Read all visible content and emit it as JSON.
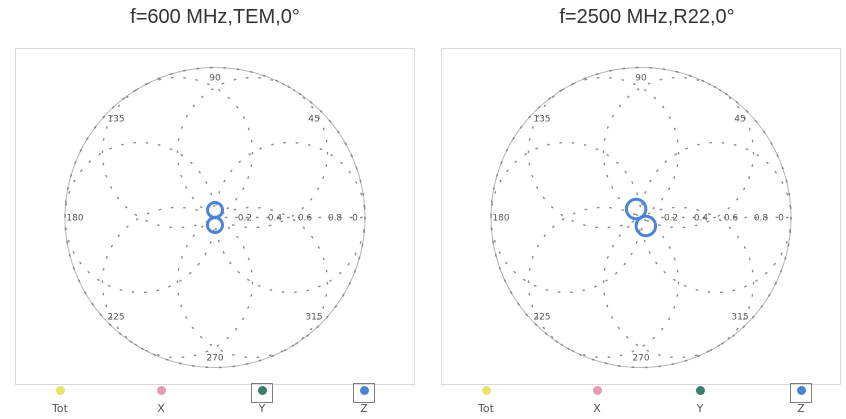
{
  "chart_data": [
    {
      "type": "polar",
      "title": "f=600 MHz,TEM,0°",
      "angle_ticks": [
        "90",
        "135",
        "180",
        "225",
        "270",
        "315",
        "0",
        "45"
      ],
      "angle_tick_degrees": [
        90,
        135,
        180,
        225,
        270,
        315,
        0,
        45
      ],
      "r_ticks": [
        "0.2",
        "0.4",
        "0.6",
        "0.8"
      ],
      "r_tick_values": [
        0.2,
        0.4,
        0.6,
        0.8
      ],
      "rlim": [
        0,
        1
      ],
      "grid": true,
      "legend": [
        "Tot",
        "X",
        "Y",
        "Z"
      ],
      "legend_selected": [
        "Y",
        "Z"
      ],
      "series": [
        {
          "name": "Z",
          "shape": "figure-eight",
          "lobe_radius": 0.05,
          "axis_angle": 90
        }
      ]
    },
    {
      "type": "polar",
      "title": "f=2500 MHz,R22,0°",
      "angle_ticks": [
        "90",
        "135",
        "180",
        "225",
        "270",
        "315",
        "0",
        "45"
      ],
      "angle_tick_degrees": [
        90,
        135,
        180,
        225,
        270,
        315,
        0,
        45
      ],
      "r_ticks": [
        "0.2",
        "0.4",
        "0.6",
        "0.8"
      ],
      "r_tick_values": [
        0.2,
        0.4,
        0.6,
        0.8
      ],
      "rlim": [
        0,
        1
      ],
      "grid": true,
      "legend": [
        "Tot",
        "X",
        "Y",
        "Z"
      ],
      "legend_selected": [
        "Z"
      ],
      "series": [
        {
          "name": "Z",
          "shape": "figure-eight",
          "lobe_radius": 0.065,
          "axis_angle": 120
        }
      ]
    }
  ],
  "colors": {
    "tot": "#e8e36a",
    "x": "#e39ab2",
    "y": "#3b7c6d",
    "z": "#4a84d6",
    "grid": "#8a8a8a"
  }
}
